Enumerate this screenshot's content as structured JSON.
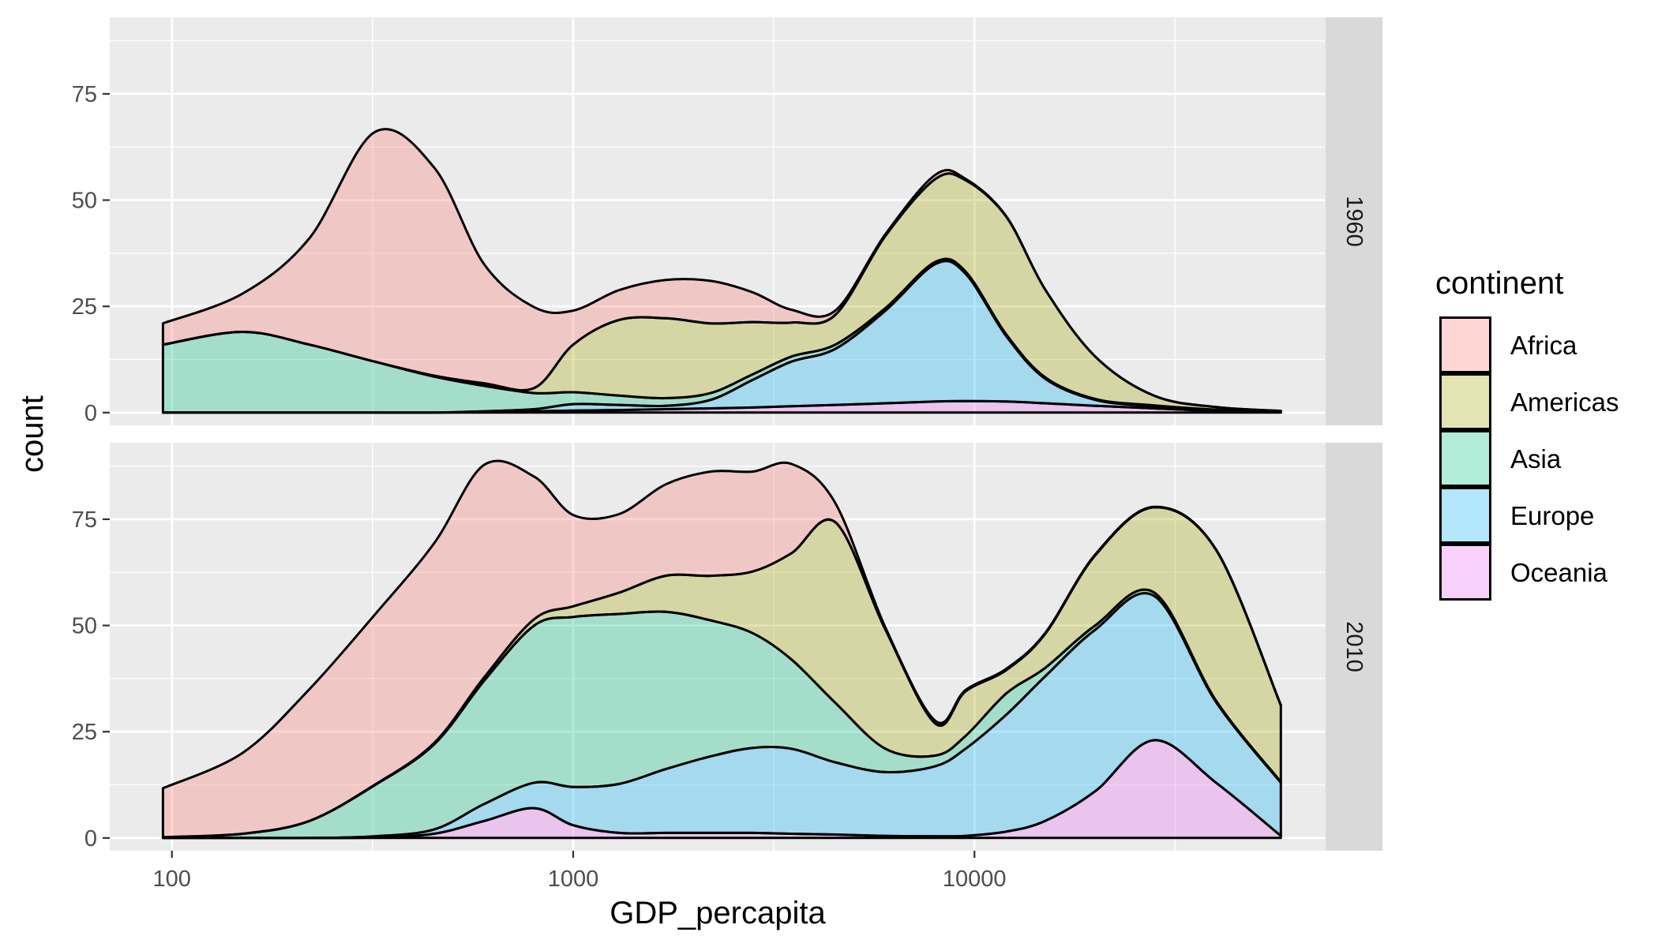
{
  "chart_data": {
    "type": "area",
    "stacked": true,
    "curve": "density",
    "xlabel": "GDP_percapita",
    "ylabel": "count",
    "x_scale": "log10",
    "xlim": [
      70,
      75000
    ],
    "ylim": [
      -3,
      93
    ],
    "x_ticks": [
      100,
      1000,
      10000
    ],
    "x_tick_labels": [
      "100",
      "1000",
      "10000"
    ],
    "y_ticks": [
      0,
      25,
      50,
      75
    ],
    "y_tick_labels": [
      "0",
      "25",
      "50",
      "75"
    ],
    "grid": true,
    "legend": {
      "title": "continent",
      "position": "right",
      "entries": [
        "Africa",
        "Americas",
        "Asia",
        "Europe",
        "Oceania"
      ]
    },
    "colors": {
      "Africa": "#F8766D",
      "Americas": "#A3A500",
      "Asia": "#00BF7D",
      "Europe": "#00B0F6",
      "Oceania": "#E76BF3"
    },
    "fill_alpha": 0.3,
    "panel_background": "#EBEBEB",
    "strip_background": "#D9D9D9",
    "facets": [
      {
        "label": "1960",
        "x": [
          95,
          150,
          220,
          320,
          450,
          600,
          800,
          1000,
          1300,
          1700,
          2200,
          2800,
          3500,
          4500,
          6000,
          8000,
          9500,
          12000,
          15000,
          20000,
          28000,
          40000,
          58000
        ],
        "series": [
          {
            "name": "Oceania",
            "values": [
              0,
              0,
              0,
              0,
              0,
              0.1,
              0.3,
              0.5,
              0.6,
              0.8,
              1.0,
              1.2,
              1.5,
              1.8,
              2.2,
              2.6,
              2.7,
              2.6,
              2.2,
              1.6,
              1.0,
              0.4,
              0.1
            ]
          },
          {
            "name": "Europe",
            "values": [
              0,
              0,
              0,
              0,
              0,
              0.2,
              0.5,
              1.5,
              1.2,
              0.8,
              2.0,
              6.5,
              10.5,
              13.2,
              21.8,
              32.4,
              30.0,
              15.4,
              5.8,
              1.4,
              0.5,
              0.2,
              0.1
            ]
          },
          {
            "name": "Asia",
            "values": [
              16,
              19,
              16,
              12,
              8.5,
              6.0,
              3.8,
              2.8,
              2.2,
              1.8,
              1.6,
              1.3,
              1.2,
              1.0,
              0.6,
              0.5,
              0.5,
              0.4,
              0.3,
              0.2,
              0.2,
              0.1,
              0.0
            ]
          },
          {
            "name": "Americas",
            "values": [
              0,
              0,
              0,
              0,
              0.2,
              0.6,
              1.2,
              11.2,
              17.8,
              18.8,
              16.4,
              12.3,
              8.0,
              7.0,
              17.0,
              19.5,
              21.5,
              27.7,
              20.7,
              10.0,
              2.3,
              0.6,
              0.2
            ]
          },
          {
            "name": "Africa",
            "values": [
              5,
              9,
              25,
              54,
              49,
              28,
              19,
              8,
              7,
              9,
              10,
              7,
              3,
              1,
              0.4,
              1.0,
              0.3,
              0.1,
              0,
              0,
              0,
              0,
              0
            ]
          }
        ]
      },
      {
        "label": "2010",
        "x": [
          95,
          150,
          220,
          320,
          450,
          600,
          800,
          1000,
          1300,
          1700,
          2200,
          2800,
          3500,
          4500,
          6000,
          8000,
          9500,
          12000,
          15000,
          20000,
          28000,
          40000,
          58000
        ],
        "series": [
          {
            "name": "Oceania",
            "values": [
              0,
              0,
              0,
              0.1,
              1.0,
              4.0,
              7.0,
              3.0,
              1.2,
              1.2,
              1.2,
              1.2,
              1.0,
              0.8,
              0.5,
              0.4,
              0.5,
              1.5,
              4.0,
              11.0,
              23.0,
              13.0,
              0.5
            ]
          },
          {
            "name": "Europe",
            "values": [
              0,
              0,
              0,
              0.3,
              1.0,
              4.0,
              6.0,
              9.0,
              11.5,
              15.0,
              18.0,
              20.0,
              20.0,
              17.0,
              15.0,
              16.5,
              20.5,
              27.5,
              34.0,
              38.0,
              34.0,
              19.0,
              12.5
            ]
          },
          {
            "name": "Asia",
            "values": [
              0.2,
              1.0,
              4.0,
              12.0,
              20.0,
              29.0,
              37.0,
              40.0,
              40.0,
              37.0,
              32.0,
              27.0,
              21.0,
              14.0,
              5.5,
              2.5,
              3.0,
              5.0,
              2.0,
              1.0,
              0.8,
              0.3,
              0.2
            ]
          },
          {
            "name": "Americas",
            "values": [
              0,
              0,
              0,
              0.1,
              0.3,
              0.8,
              1.5,
              2.5,
              5.0,
              8.5,
              10.5,
              14.5,
              25.0,
              42.5,
              28.0,
              7.5,
              10.5,
              5.5,
              8.0,
              16.5,
              20.0,
              35.5,
              18.0
            ]
          },
          {
            "name": "Africa",
            "values": [
              11.5,
              19.0,
              31.0,
              40.0,
              47.0,
              50.0,
              33.5,
              21.5,
              18.5,
              21.5,
              24.5,
              23.5,
              21.0,
              4.5,
              0.5,
              0.6,
              0.3,
              0.3,
              0.2,
              0.2,
              0.1,
              0.1,
              0.1
            ]
          }
        ]
      }
    ]
  }
}
